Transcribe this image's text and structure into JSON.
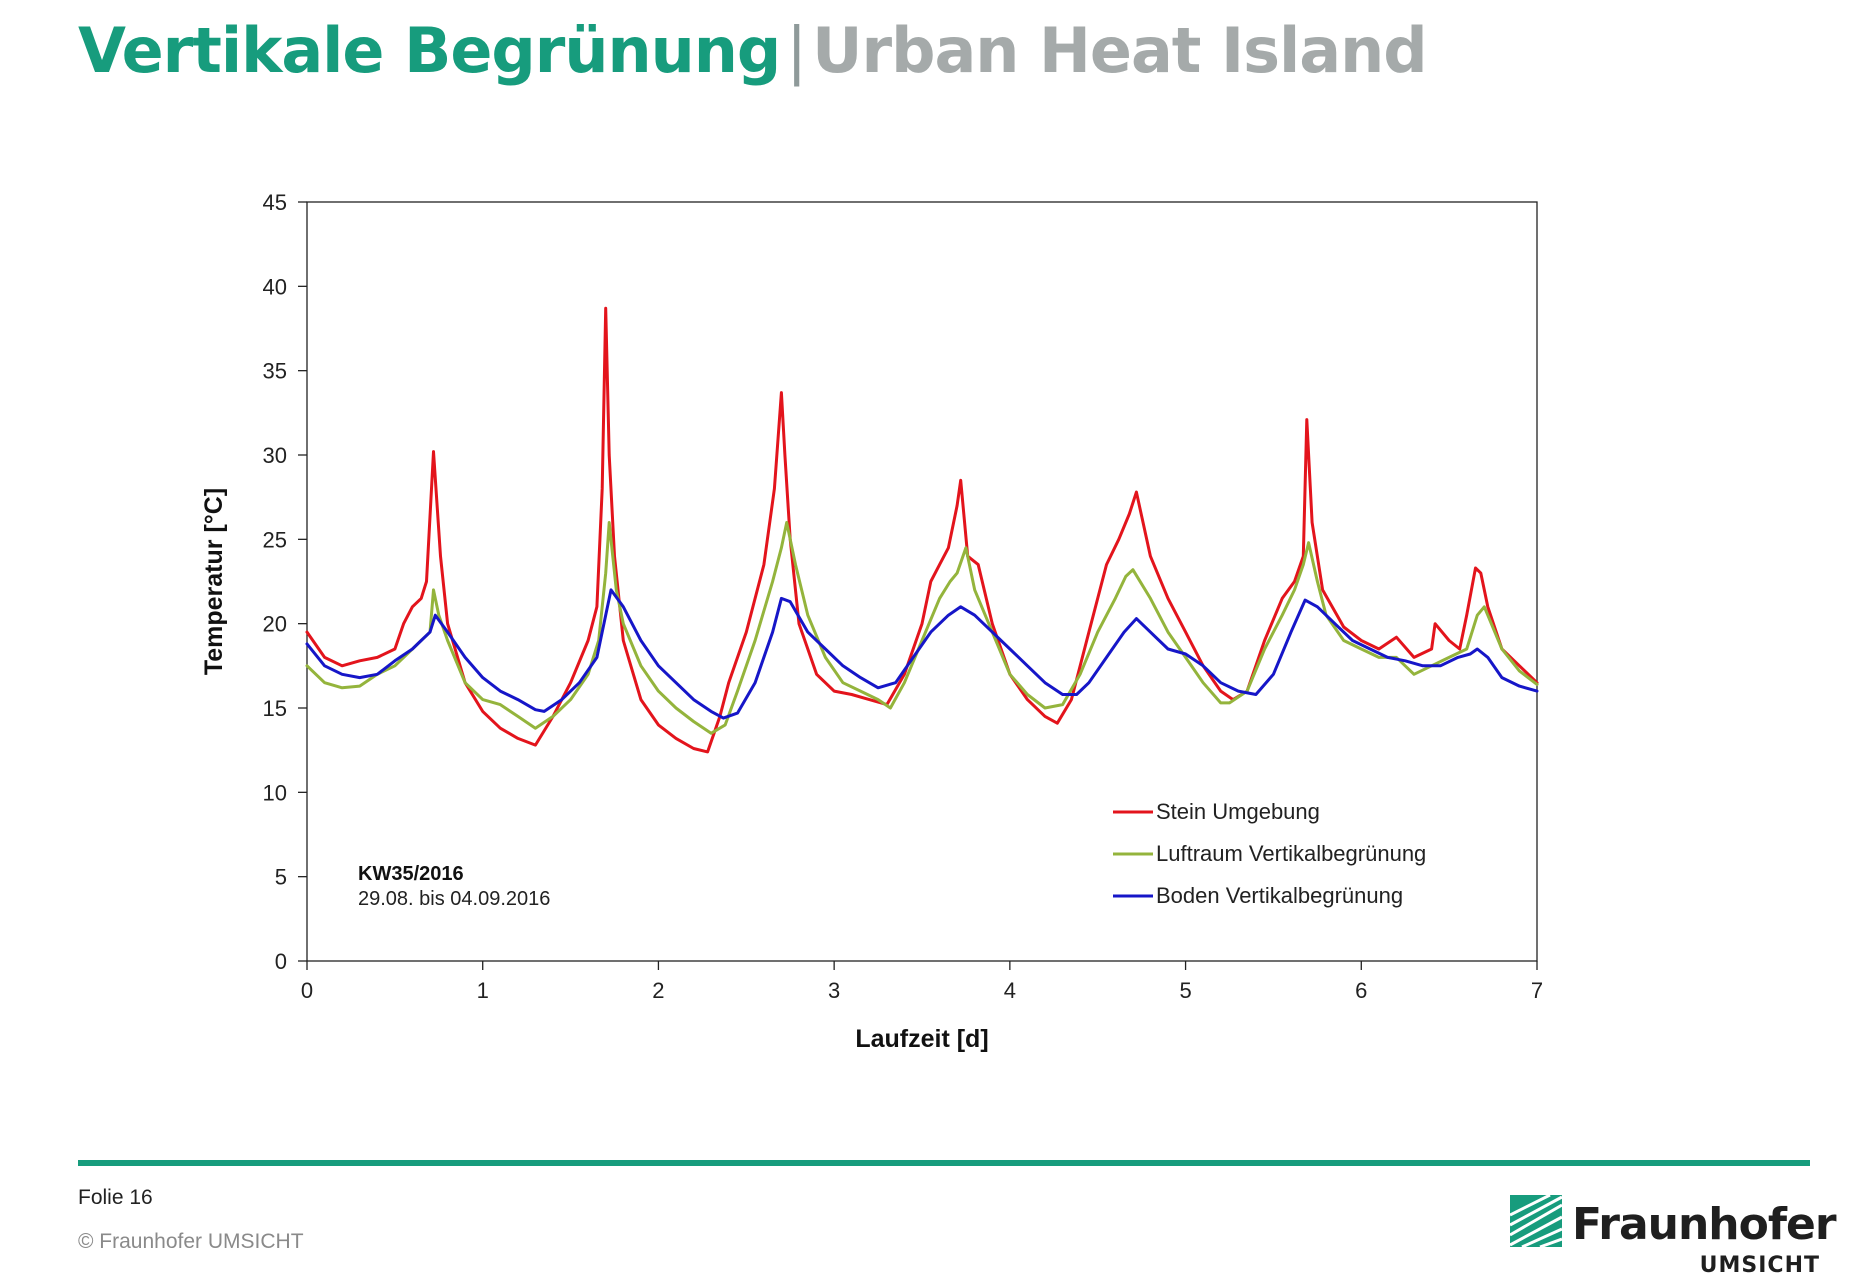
{
  "slide": {
    "title_main": "Vertikale Begrünung",
    "title_separator": "|",
    "title_sub": "Urban Heat Island",
    "folie_label": "Folie 16",
    "copyright": "© Fraunhofer UMSICHT",
    "accent_color": "#179c7d",
    "logo_name": "Fraunhofer",
    "logo_sub": "UMSICHT"
  },
  "chart_data": {
    "type": "line",
    "title": "",
    "xlabel": "Laufzeit [d]",
    "ylabel": "Temperatur [°C]",
    "xlim": [
      0,
      7
    ],
    "ylim": [
      0,
      45
    ],
    "xticks": [
      0,
      1,
      2,
      3,
      4,
      5,
      6,
      7
    ],
    "yticks": [
      0,
      5,
      10,
      15,
      20,
      25,
      30,
      35,
      40,
      45
    ],
    "grid": false,
    "legend_position": "bottom-right",
    "annotation": {
      "title": "KW35/2016",
      "text": "29.08. bis 04.09.2016"
    },
    "series": [
      {
        "name": "Stein Umgebung",
        "color": "#e3141c",
        "x": [
          0,
          0.1,
          0.2,
          0.3,
          0.4,
          0.5,
          0.55,
          0.6,
          0.65,
          0.68,
          0.72,
          0.76,
          0.8,
          0.9,
          1.0,
          1.1,
          1.2,
          1.3,
          1.4,
          1.5,
          1.6,
          1.65,
          1.68,
          1.7,
          1.72,
          1.75,
          1.8,
          1.9,
          2.0,
          2.1,
          2.2,
          2.28,
          2.35,
          2.4,
          2.5,
          2.6,
          2.66,
          2.7,
          2.72,
          2.75,
          2.8,
          2.9,
          3.0,
          3.1,
          3.2,
          3.3,
          3.4,
          3.5,
          3.55,
          3.6,
          3.65,
          3.7,
          3.72,
          3.76,
          3.82,
          3.9,
          4.0,
          4.1,
          4.2,
          4.27,
          4.35,
          4.45,
          4.55,
          4.62,
          4.68,
          4.72,
          4.8,
          4.9,
          5.0,
          5.1,
          5.2,
          5.27,
          5.35,
          5.45,
          5.55,
          5.62,
          5.67,
          5.69,
          5.72,
          5.78,
          5.9,
          6.0,
          6.1,
          6.2,
          6.3,
          6.4,
          6.42,
          6.5,
          6.56,
          6.6,
          6.65,
          6.68,
          6.72,
          6.8,
          6.9,
          7.0
        ],
        "y": [
          19.5,
          18.0,
          17.5,
          17.8,
          18.0,
          18.5,
          20.0,
          21.0,
          21.5,
          22.5,
          30.2,
          24.0,
          20.0,
          16.5,
          14.8,
          13.8,
          13.2,
          12.8,
          14.5,
          16.5,
          19.0,
          21.0,
          28.0,
          38.7,
          30.0,
          24.0,
          19.0,
          15.5,
          14.0,
          13.2,
          12.6,
          12.4,
          14.5,
          16.5,
          19.5,
          23.5,
          28.0,
          33.7,
          30.0,
          25.0,
          20.0,
          17.0,
          16.0,
          15.8,
          15.5,
          15.2,
          17.0,
          20.0,
          22.5,
          23.5,
          24.5,
          27.0,
          28.5,
          24.0,
          23.5,
          20.0,
          17.0,
          15.5,
          14.5,
          14.1,
          15.5,
          19.5,
          23.5,
          25.0,
          26.5,
          27.8,
          24.0,
          21.5,
          19.5,
          17.5,
          16.0,
          15.5,
          16.0,
          19.0,
          21.5,
          22.5,
          24.0,
          32.1,
          26.0,
          22.0,
          19.8,
          19.0,
          18.5,
          19.2,
          18.0,
          18.5,
          20.0,
          19.0,
          18.5,
          20.5,
          23.3,
          23.0,
          21.0,
          18.5,
          17.5,
          16.5
        ]
      },
      {
        "name": "Luftraum Vertikalbegrünung",
        "color": "#94b43c",
        "x": [
          0,
          0.1,
          0.2,
          0.3,
          0.4,
          0.5,
          0.6,
          0.65,
          0.7,
          0.72,
          0.75,
          0.8,
          0.9,
          1.0,
          1.1,
          1.2,
          1.3,
          1.4,
          1.5,
          1.6,
          1.66,
          1.7,
          1.72,
          1.76,
          1.8,
          1.9,
          2.0,
          2.1,
          2.2,
          2.3,
          2.38,
          2.45,
          2.55,
          2.65,
          2.7,
          2.73,
          2.78,
          2.85,
          2.95,
          3.05,
          3.15,
          3.25,
          3.32,
          3.4,
          3.5,
          3.6,
          3.66,
          3.7,
          3.75,
          3.8,
          3.9,
          4.0,
          4.1,
          4.2,
          4.3,
          4.4,
          4.5,
          4.6,
          4.66,
          4.7,
          4.8,
          4.9,
          5.0,
          5.1,
          5.2,
          5.25,
          5.35,
          5.45,
          5.55,
          5.62,
          5.67,
          5.7,
          5.75,
          5.8,
          5.9,
          6.0,
          6.1,
          6.2,
          6.3,
          6.4,
          6.5,
          6.6,
          6.66,
          6.7,
          6.8,
          6.9,
          7.0
        ],
        "y": [
          17.5,
          16.5,
          16.2,
          16.3,
          17.0,
          17.5,
          18.5,
          19.0,
          19.5,
          22.0,
          20.5,
          19.0,
          16.5,
          15.5,
          15.2,
          14.5,
          13.8,
          14.5,
          15.5,
          17.0,
          19.0,
          23.0,
          26.0,
          22.0,
          20.0,
          17.5,
          16.0,
          15.0,
          14.2,
          13.5,
          14.0,
          16.0,
          19.0,
          22.5,
          24.5,
          26.0,
          23.5,
          20.5,
          18.0,
          16.5,
          16.0,
          15.5,
          15.0,
          16.5,
          19.0,
          21.5,
          22.5,
          23.0,
          24.5,
          22.0,
          19.5,
          17.0,
          15.8,
          15.0,
          15.2,
          17.0,
          19.5,
          21.5,
          22.8,
          23.2,
          21.5,
          19.5,
          18.0,
          16.5,
          15.3,
          15.3,
          16.0,
          18.5,
          20.5,
          22.0,
          23.5,
          24.8,
          22.5,
          20.5,
          19.0,
          18.5,
          18.0,
          18.0,
          17.0,
          17.5,
          18.0,
          18.5,
          20.5,
          21.0,
          18.5,
          17.2,
          16.4
        ]
      },
      {
        "name": "Boden Vertikalbegrünung",
        "color": "#1616c8",
        "x": [
          0,
          0.1,
          0.2,
          0.3,
          0.4,
          0.5,
          0.6,
          0.65,
          0.7,
          0.73,
          0.8,
          0.9,
          1.0,
          1.1,
          1.2,
          1.3,
          1.35,
          1.45,
          1.55,
          1.65,
          1.7,
          1.73,
          1.8,
          1.9,
          2.0,
          2.1,
          2.2,
          2.3,
          2.37,
          2.45,
          2.55,
          2.65,
          2.7,
          2.75,
          2.85,
          2.95,
          3.05,
          3.15,
          3.25,
          3.35,
          3.45,
          3.55,
          3.65,
          3.72,
          3.8,
          3.9,
          4.0,
          4.1,
          4.2,
          4.3,
          4.38,
          4.45,
          4.55,
          4.65,
          4.72,
          4.8,
          4.9,
          5.0,
          5.1,
          5.2,
          5.3,
          5.4,
          5.5,
          5.6,
          5.68,
          5.75,
          5.85,
          5.95,
          6.05,
          6.15,
          6.25,
          6.35,
          6.45,
          6.55,
          6.62,
          6.66,
          6.72,
          6.8,
          6.9,
          7.0
        ],
        "y": [
          18.8,
          17.5,
          17.0,
          16.8,
          17.0,
          17.8,
          18.5,
          19.0,
          19.5,
          20.5,
          19.5,
          18.0,
          16.8,
          16.0,
          15.5,
          14.9,
          14.8,
          15.5,
          16.5,
          18.0,
          20.5,
          22.0,
          21.0,
          19.0,
          17.5,
          16.5,
          15.5,
          14.8,
          14.4,
          14.7,
          16.5,
          19.5,
          21.5,
          21.3,
          19.5,
          18.5,
          17.5,
          16.8,
          16.2,
          16.5,
          18.0,
          19.5,
          20.5,
          21.0,
          20.5,
          19.5,
          18.5,
          17.5,
          16.5,
          15.8,
          15.8,
          16.5,
          18.0,
          19.5,
          20.3,
          19.5,
          18.5,
          18.2,
          17.5,
          16.5,
          16.0,
          15.8,
          17.0,
          19.5,
          21.4,
          21.0,
          20.0,
          19.0,
          18.5,
          18.0,
          17.8,
          17.5,
          17.5,
          18.0,
          18.2,
          18.5,
          18.0,
          16.8,
          16.3,
          16.0
        ]
      }
    ]
  }
}
